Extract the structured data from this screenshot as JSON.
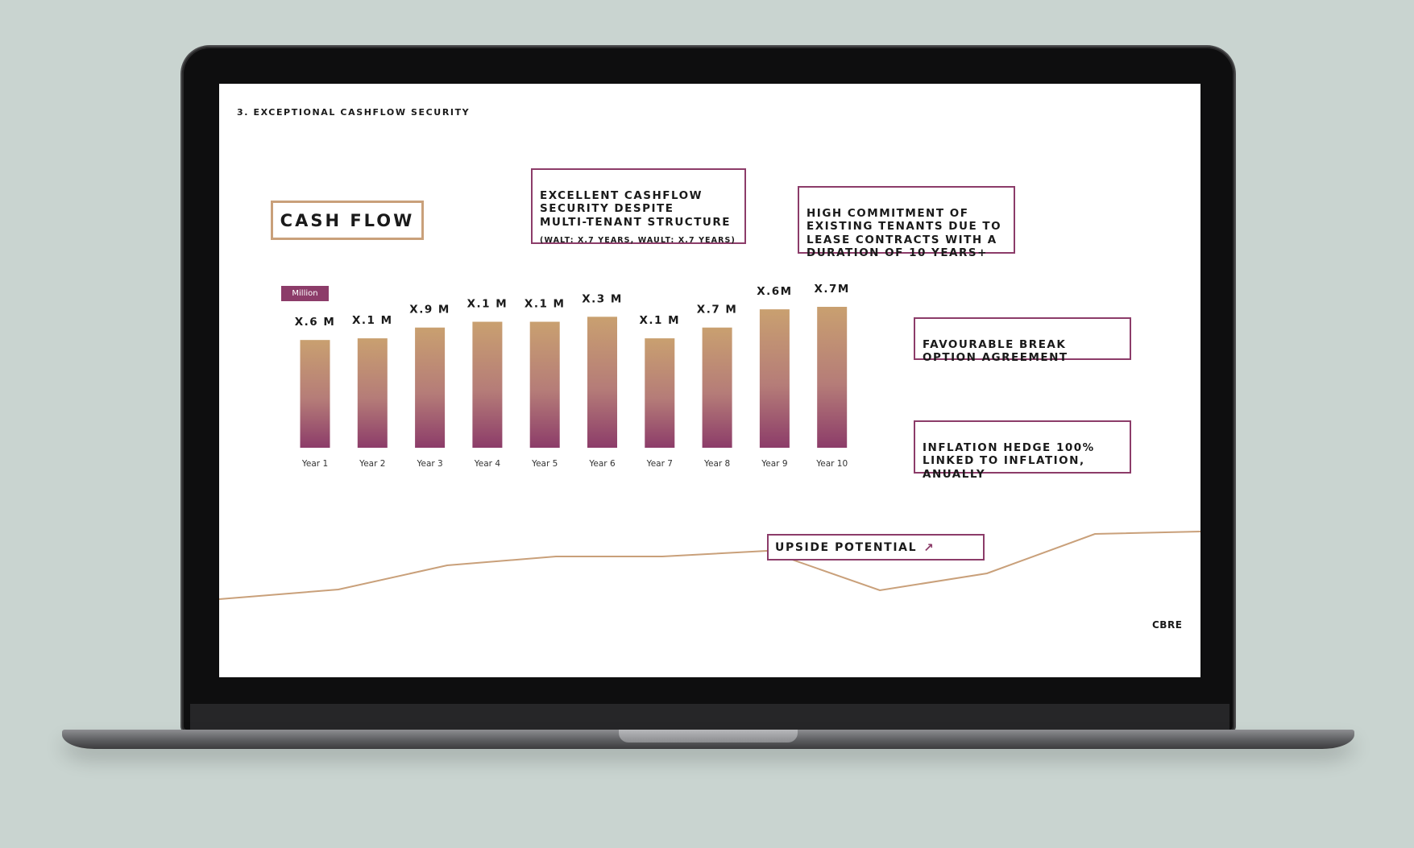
{
  "slide": {
    "section_title": "3. EXCEPTIONAL CASHFLOW SECURITY",
    "heading": "CASH FLOW",
    "unit_badge": "Million",
    "logo": "CBRE",
    "notes": {
      "cashflow_security": "EXCELLENT CASHFLOW\nSECURITY DESPITE\nMULTI-TENANT STRUCTURE",
      "cashflow_security_sub": "(WALT: X.7 YEARS, WAULT: X.7 YEARS)",
      "tenant_commitment": "HIGH COMMITMENT OF\nEXISTING TENANTS DUE TO\nLEASE CONTRACTS WITH A\nDURATION OF 10 YEARS+",
      "break_option": "FAVOURABLE BREAK\nOPTION AGREEMENT",
      "inflation_hedge": "INFLATION HEDGE 100%\nLINKED TO INFLATION,\nANUALLY",
      "upside": "UPSIDE POTENTIAL",
      "upside_icon": "arrow-up-right-icon"
    }
  },
  "colors": {
    "accent_purple": "#8c3c69",
    "accent_gold": "#c9a07a",
    "bar_top": "#c9a070",
    "bar_bottom": "#8c3c69"
  },
  "chart_data": {
    "type": "bar",
    "categories": [
      "Year 1",
      "Year 2",
      "Year 3",
      "Year 4",
      "Year 5",
      "Year 6",
      "Year 7",
      "Year 8",
      "Year 9",
      "Year 10"
    ],
    "value_labels": [
      "X.6 M",
      "X.1 M",
      "X.9 M",
      "X.1 M",
      "X.1 M",
      "X.3 M",
      "X.1 M",
      "X.7 M",
      "X.6M",
      "X.7M"
    ],
    "values": [
      130,
      132,
      145,
      152,
      152,
      158,
      132,
      145,
      167,
      170
    ],
    "ylim": [
      0,
      170
    ],
    "xlabel": "",
    "ylabel": "",
    "grid": false,
    "legend": "none"
  }
}
